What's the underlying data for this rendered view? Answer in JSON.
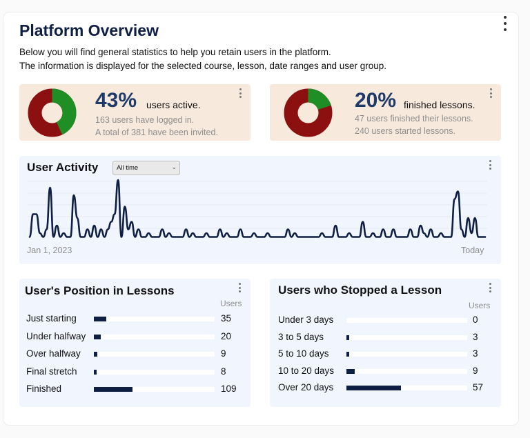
{
  "page": {
    "title": "Platform Overview",
    "intro_line1": "Below you will find general statistics to help you retain users in the platform.",
    "intro_line2": "The information is displayed for the selected course, lesson, date ranges and user group."
  },
  "colors": {
    "navy": "#0f1f44",
    "green": "#1f8f25",
    "red": "#8d1010",
    "card_bg": "#f7e9dc",
    "panel_bg": "#f1f5fe"
  },
  "icons": {
    "menu": "kebab-vertical"
  },
  "active_card": {
    "percent": "43%",
    "label": "users active.",
    "sub1": "163 users have logged in.",
    "sub2": "A total of 381 have been invited.",
    "fraction": 0.43
  },
  "finished_card": {
    "percent": "20%",
    "label": "finished lessons.",
    "sub1": "47 users finished their lessons.",
    "sub2": "240 users started lessons.",
    "fraction": 0.2
  },
  "activity": {
    "title": "User Activity",
    "filter_value": "All time",
    "x_start": "Jan 1, 2023",
    "x_end": "Today",
    "chart_data": {
      "type": "line",
      "x_start": "Jan 1, 2023",
      "x_end": "Today",
      "values": [
        1,
        7,
        7,
        2,
        1,
        3,
        14,
        1,
        4,
        1,
        2,
        1,
        1,
        12,
        6,
        1,
        1,
        3,
        1,
        4,
        1,
        3,
        1,
        3,
        5,
        7,
        16,
        1,
        9,
        3,
        5,
        1,
        3,
        1,
        1,
        2,
        1,
        1,
        1,
        3,
        1,
        2,
        1,
        1,
        1,
        1,
        3,
        1,
        2,
        1,
        1,
        1,
        2,
        1,
        1,
        1,
        3,
        1,
        2,
        1,
        1,
        1,
        3,
        1,
        1,
        1,
        2,
        1,
        1,
        1,
        2,
        1,
        1,
        1,
        1,
        1,
        3,
        1,
        2,
        1,
        1,
        1,
        1,
        1,
        1,
        1,
        2,
        1,
        1,
        1,
        4,
        1,
        1,
        1,
        2,
        1,
        1,
        1,
        5,
        1,
        1,
        2,
        1,
        1,
        3,
        1,
        1,
        3,
        1,
        1,
        1,
        1,
        3,
        1,
        1,
        4,
        2,
        1,
        3,
        1,
        1,
        2,
        1,
        1,
        1,
        11,
        13,
        3,
        1,
        6,
        2,
        6,
        1,
        1,
        1
      ]
    }
  },
  "positions": {
    "title": "User's Position in Lessons",
    "column_header": "Users",
    "max": 341,
    "rows": [
      {
        "label": "Just starting",
        "value": 35
      },
      {
        "label": "Under halfway",
        "value": 20
      },
      {
        "label": "Over halfway",
        "value": 9
      },
      {
        "label": "Final stretch",
        "value": 8
      },
      {
        "label": "Finished",
        "value": 109
      }
    ]
  },
  "stopped": {
    "title": "Users who Stopped a Lesson",
    "column_header": "Users",
    "max": 127,
    "rows": [
      {
        "label": "Under 3 days",
        "value": 0
      },
      {
        "label": "3 to 5 days",
        "value": 3
      },
      {
        "label": "5 to 10 days",
        "value": 3
      },
      {
        "label": "10 to 20 days",
        "value": 9
      },
      {
        "label": "Over 20 days",
        "value": 57
      }
    ]
  }
}
